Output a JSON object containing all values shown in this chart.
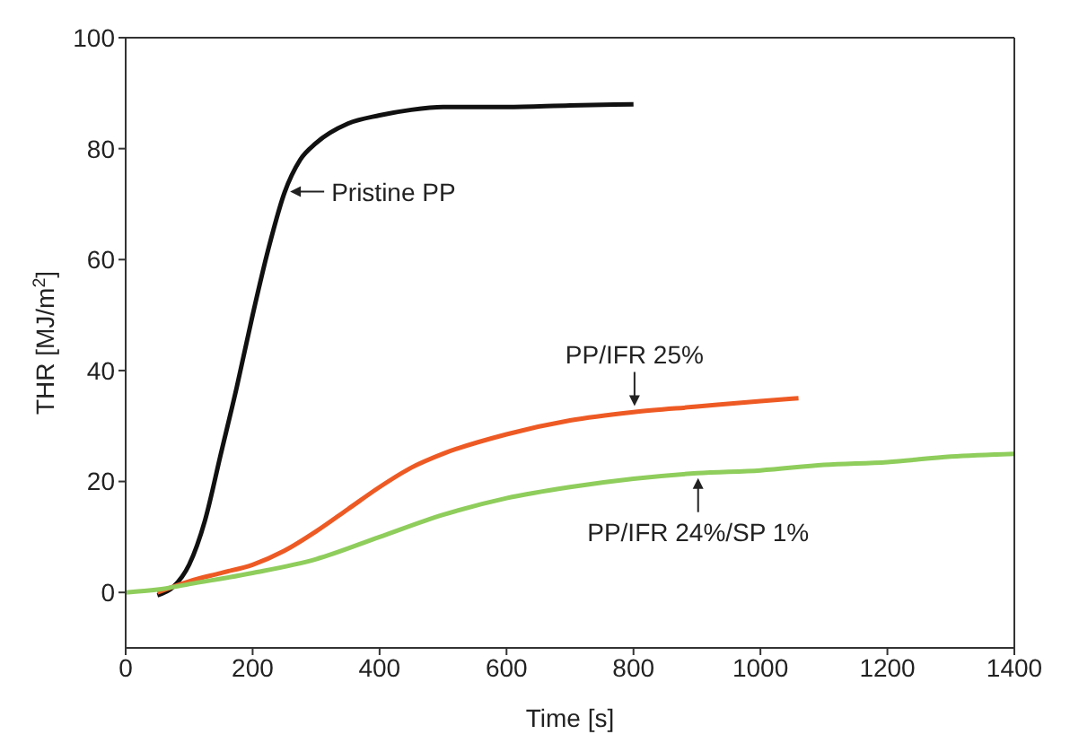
{
  "chart_data": {
    "type": "line",
    "xlabel": "Time [s]",
    "ylabel": "THR [MJ/m$^{2}$]",
    "xlim": [
      0,
      1400
    ],
    "xticks": [
      0,
      200,
      400,
      600,
      800,
      1000,
      1200,
      1400
    ],
    "ylim": [
      -10,
      100
    ],
    "yticks": [
      0,
      20,
      40,
      60,
      80,
      100
    ],
    "line_style": "solid",
    "marker": "none",
    "series": [
      {
        "name": "Pristine PP",
        "color": "#111111",
        "x": [
          50,
          75,
          100,
          125,
          150,
          175,
          200,
          225,
          250,
          275,
          300,
          350,
          400,
          450,
          500,
          600,
          700,
          800
        ],
        "values": [
          -0.5,
          1,
          5,
          13,
          25,
          37,
          50,
          62,
          72,
          78,
          81,
          84.5,
          86,
          87,
          87.5,
          87.5,
          87.8,
          88
        ]
      },
      {
        "name": "PP/IFR 25%",
        "color": "#ee5a24",
        "x": [
          50,
          100,
          150,
          200,
          250,
          300,
          350,
          400,
          450,
          500,
          600,
          700,
          800,
          900,
          1000,
          1060
        ],
        "values": [
          0,
          2,
          3.5,
          5,
          7.5,
          11,
          15,
          19,
          22.5,
          25,
          28.5,
          31,
          32.5,
          33.5,
          34.5,
          35
        ]
      },
      {
        "name": "PP/IFR 24%/SP 1%",
        "color": "#8fcd5c",
        "x": [
          0,
          50,
          100,
          200,
          300,
          400,
          500,
          600,
          700,
          800,
          900,
          1000,
          1100,
          1200,
          1300,
          1400
        ],
        "values": [
          0,
          0.5,
          1.5,
          3.5,
          6,
          10,
          14,
          17,
          19,
          20.5,
          21.5,
          22,
          23,
          23.5,
          24.5,
          25
        ]
      }
    ]
  }
}
